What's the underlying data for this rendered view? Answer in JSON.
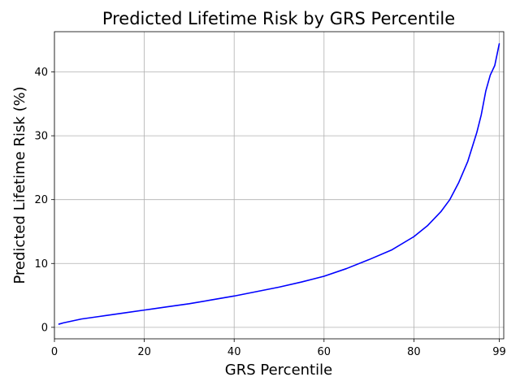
{
  "chart_data": {
    "type": "line",
    "title": "Predicted Lifetime Risk by GRS Percentile",
    "xlabel": "GRS Percentile",
    "ylabel": "Predicted Lifetime Risk (%)",
    "xlim": [
      0,
      100
    ],
    "ylim": [
      -1.8,
      46.3
    ],
    "xticks": [
      0,
      20,
      40,
      60,
      80,
      99
    ],
    "xtick_labels": [
      "0",
      "20",
      "40",
      "60",
      "80",
      "99"
    ],
    "yticks": [
      0,
      10,
      20,
      30,
      40
    ],
    "ytick_labels": [
      "0",
      "10",
      "20",
      "30",
      "40"
    ],
    "grid": true,
    "series": [
      {
        "color": "#0000ff",
        "x": [
          1,
          2,
          4,
          6,
          10,
          15,
          20,
          25,
          30,
          35,
          40,
          45,
          50,
          55,
          60,
          65,
          70,
          75,
          80,
          83,
          86,
          88,
          90,
          92,
          94,
          95,
          96,
          97,
          98,
          99
        ],
        "y": [
          0.5,
          0.7,
          1.0,
          1.3,
          1.7,
          2.2,
          2.7,
          3.2,
          3.7,
          4.3,
          4.9,
          5.6,
          6.3,
          7.1,
          8.0,
          9.2,
          10.6,
          12.1,
          14.2,
          15.9,
          18.1,
          20.0,
          22.7,
          26.0,
          30.5,
          33.3,
          37.0,
          39.5,
          41.0,
          44.4
        ]
      }
    ]
  }
}
